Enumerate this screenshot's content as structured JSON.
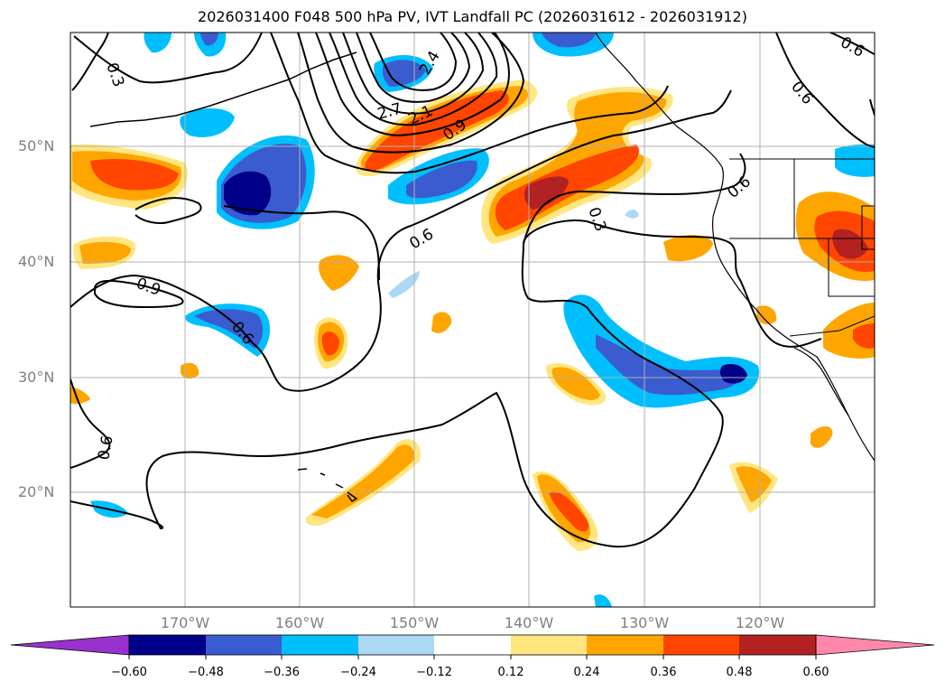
{
  "title": "2026031400 F048 500 hPa PV, IVT Landfall PC (2026031612 - 2026031912)",
  "lat_labels": [
    "50°N",
    "40°N",
    "30°N",
    "20°N"
  ],
  "lon_labels": [
    "170°W",
    "160°W",
    "150°W",
    "140°W",
    "130°W",
    "120°W"
  ],
  "contour_labels": [
    "0.3",
    "0.6",
    "0.9",
    "2.1",
    "2.4",
    "2.7",
    "0.6",
    "0.3",
    "0.6",
    "0.6",
    "0.9",
    "0.6",
    "0.6",
    "0.6"
  ],
  "colorbar": {
    "tick_labels": [
      "−0.60",
      "−0.48",
      "−0.36",
      "−0.24",
      "−0.12",
      "0.12",
      "0.24",
      "0.36",
      "0.48",
      "0.60"
    ],
    "colors": [
      "#9932cc",
      "#00008b",
      "#3a5ccf",
      "#00bfff",
      "#add8f4",
      "#ffffff",
      "#ffe680",
      "#ffa500",
      "#ff4500",
      "#b22222",
      "#ff88aa"
    ]
  },
  "colors": {
    "grid": "#b0b0b0",
    "axis_labels": "#808080",
    "contour": "#000000"
  }
}
